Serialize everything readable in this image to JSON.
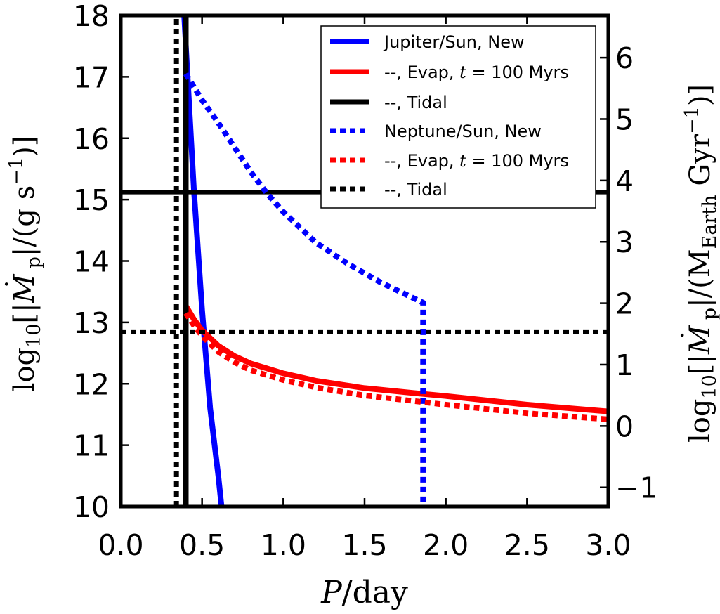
{
  "chart_data": {
    "type": "line",
    "xlabel_italic": "P",
    "xlabel_rest": "/day",
    "ylabel_left": {
      "log": "log",
      "log_sub": "10",
      "open": "[|",
      "var": "M",
      "dot": "˙",
      "var_sub": "p",
      "mid": "|/(g s",
      "exp": "−1",
      "close": ")]"
    },
    "ylabel_right": {
      "log": "log",
      "log_sub": "10",
      "open": "[|",
      "var": "M",
      "dot": "˙",
      "var_sub": "p",
      "mid": "|/(M",
      "mid_sub": "Earth",
      "mid2": " Gyr",
      "exp": "−1",
      "close": ")]"
    },
    "xlim": [
      0.0,
      3.0
    ],
    "ylim": [
      10,
      18
    ],
    "ylim_right": [
      -1.312,
      6.688
    ],
    "x_ticks": [
      "0.0",
      "0.5",
      "1.0",
      "1.5",
      "2.0",
      "2.5",
      "3.0"
    ],
    "y_ticks": [
      "10",
      "11",
      "12",
      "13",
      "14",
      "15",
      "16",
      "17",
      "18"
    ],
    "y_ticks_right": [
      "−1",
      "0",
      "1",
      "2",
      "3",
      "4",
      "5",
      "6"
    ],
    "legend_position": "top-right",
    "series": [
      {
        "name": "Jupiter/Sun, New",
        "color": "#0000ff",
        "style": "solid",
        "x": [
          0.39,
          0.45,
          0.5,
          0.55,
          0.6,
          0.62
        ],
        "y": [
          18.0,
          15.15,
          13.2,
          11.6,
          10.5,
          10.0
        ]
      },
      {
        "name_prefix": "--, Evap, ",
        "name_italic": "t",
        "name_suffix": " = 100 Myrs",
        "color": "#ff0000",
        "style": "solid",
        "x": [
          0.4,
          0.45,
          0.5,
          0.6,
          0.7,
          0.8,
          1.0,
          1.2,
          1.5,
          1.8,
          2.0,
          2.5,
          3.0
        ],
        "y": [
          13.27,
          13.05,
          12.87,
          12.62,
          12.45,
          12.33,
          12.17,
          12.05,
          11.93,
          11.85,
          11.8,
          11.66,
          11.55
        ]
      },
      {
        "name": "--, Tidal",
        "color": "#000000",
        "style": "solid",
        "x": [
          0.4,
          0.4,
          0.4
        ],
        "y": [
          10.0,
          14.0,
          18.0
        ],
        "hline": 15.12
      },
      {
        "name": "Neptune/Sun, New",
        "color": "#0000ff",
        "style": "dotted",
        "x": [
          0.4,
          0.5,
          0.6,
          0.7,
          0.8,
          0.9,
          1.0,
          1.2,
          1.4,
          1.6,
          1.86,
          1.86
        ],
        "y": [
          17.05,
          16.62,
          16.25,
          15.85,
          15.45,
          15.1,
          14.8,
          14.3,
          13.95,
          13.65,
          13.32,
          10.0
        ]
      },
      {
        "name_prefix": "--, Evap, ",
        "name_italic": "t",
        "name_suffix": " = 100 Myrs",
        "color": "#ff0000",
        "style": "dotted",
        "x": [
          0.4,
          0.45,
          0.5,
          0.6,
          0.7,
          0.8,
          1.0,
          1.2,
          1.5,
          1.8,
          2.0,
          2.5,
          3.0
        ],
        "y": [
          13.15,
          12.95,
          12.78,
          12.52,
          12.35,
          12.22,
          12.06,
          11.94,
          11.81,
          11.72,
          11.66,
          11.52,
          11.42
        ]
      },
      {
        "name": "--, Tidal",
        "color": "#000000",
        "style": "dotted",
        "x": [
          0.34,
          0.34,
          0.34
        ],
        "y": [
          10.0,
          14.0,
          18.0
        ],
        "hline": 12.84
      }
    ]
  }
}
